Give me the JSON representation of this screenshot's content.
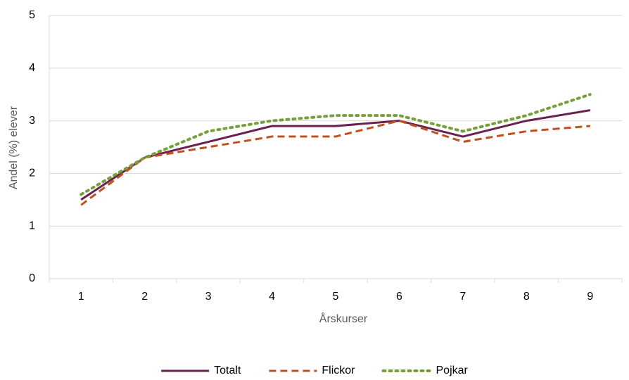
{
  "chart_data": {
    "type": "line",
    "y_label": "Andel (%) elever",
    "x_label": "Årskurser",
    "categories": [
      "1",
      "2",
      "3",
      "4",
      "5",
      "6",
      "7",
      "8",
      "9"
    ],
    "series": [
      {
        "name": "Totalt",
        "color": "#6b2150",
        "dash": "solid",
        "values": [
          1.5,
          2.3,
          2.6,
          2.9,
          2.9,
          3.0,
          2.7,
          3.0,
          3.2
        ]
      },
      {
        "name": "Flickor",
        "color": "#c0501f",
        "dash": "dashed",
        "values": [
          1.4,
          2.3,
          2.5,
          2.7,
          2.7,
          3.0,
          2.6,
          2.8,
          2.9
        ]
      },
      {
        "name": "Pojkar",
        "color": "#77a03c",
        "dash": "dotted",
        "values": [
          1.6,
          2.3,
          2.8,
          3.0,
          3.1,
          3.1,
          2.8,
          3.1,
          3.5
        ]
      }
    ],
    "ylim": [
      0,
      5
    ],
    "yticks": [
      0,
      1,
      2,
      3,
      4,
      5
    ],
    "grid": true,
    "legend": "bottom"
  }
}
